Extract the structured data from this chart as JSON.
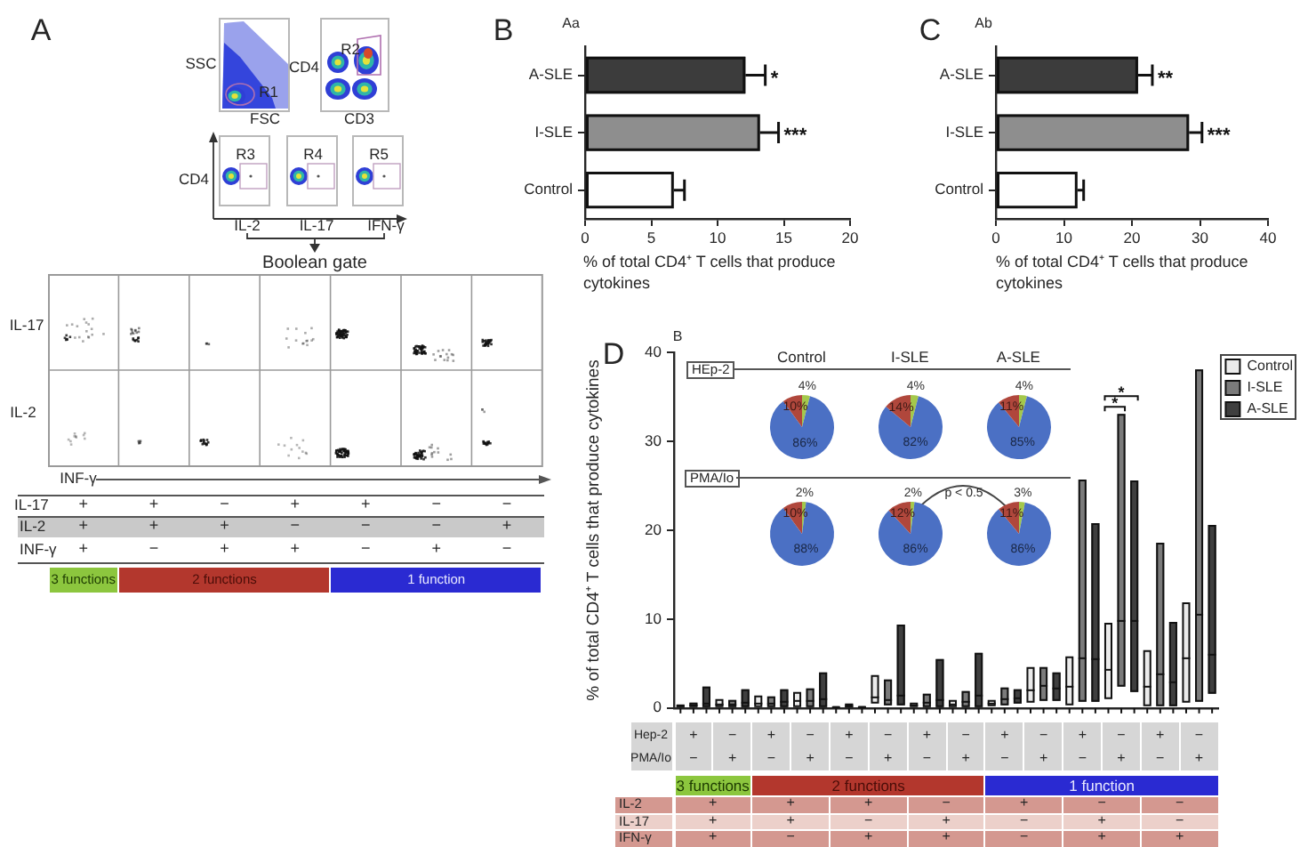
{
  "chart_data": [
    {
      "type": "other",
      "title": "A",
      "annotations": [
        "SSC",
        "R1",
        "FSC",
        "CD4",
        "R2",
        "CD3",
        "R3",
        "R4",
        "R5",
        "CD4",
        "IL-2",
        "IL-17",
        "IFN-γ",
        "Boolean gate",
        "IL-17",
        "IL-2",
        "INF-γ",
        "IL-17",
        "+",
        "+",
        "−",
        "+",
        "+",
        "−",
        "−",
        "IL-2",
        "+",
        "+",
        "+",
        "−",
        "−",
        "−",
        "+",
        "INF-γ",
        "+",
        "−",
        "+",
        "+",
        "−",
        "+",
        "−",
        "3 functions",
        "2 functions",
        "1 function"
      ]
    },
    {
      "type": "bar",
      "orientation": "horizontal",
      "title": "B",
      "subtitle": "Aa",
      "categories": [
        "A-SLE",
        "I-SLE",
        "Control"
      ],
      "values": [
        12.1,
        13.2,
        6.7
      ],
      "errors": [
        [
          12.1,
          13.6
        ],
        [
          13.2,
          14.6
        ],
        [
          6.7,
          7.5
        ]
      ],
      "colors": [
        "#3c3c3c",
        "#8e8e8e",
        "#ffffff"
      ],
      "xlim": [
        0,
        20
      ],
      "xticks": [
        0,
        5,
        10,
        15,
        20
      ],
      "xlabel": "% of total CD4⁺ T cells that produce cytokines",
      "annotations": [
        "*",
        "***"
      ]
    },
    {
      "type": "bar",
      "orientation": "horizontal",
      "title": "C",
      "subtitle": "Ab",
      "categories": [
        "A-SLE",
        "I-SLE",
        "Control"
      ],
      "values": [
        20.9,
        28.4,
        12.0
      ],
      "errors": [
        [
          20.9,
          23.0
        ],
        [
          28.4,
          30.3
        ],
        [
          12.0,
          12.9
        ]
      ],
      "colors": [
        "#3c3c3c",
        "#8e8e8e",
        "#ffffff"
      ],
      "xlim": [
        0,
        40
      ],
      "xticks": [
        0,
        10,
        20,
        30,
        40
      ],
      "xlabel": "% of total CD4⁺ T cells that produce cytokines",
      "annotations": [
        "**",
        "***"
      ]
    },
    {
      "type": "box",
      "title": "D",
      "subtitle": "B",
      "categories": [
        null,
        null,
        null,
        null,
        null,
        null,
        null,
        null,
        null,
        null,
        null,
        null,
        null,
        null
      ],
      "ylim": [
        0,
        40
      ],
      "yticks": [
        0,
        10,
        20,
        30,
        40
      ],
      "ylabel": "% of total CD4⁺ T cells that produce cytokines",
      "legend": "top right",
      "series": [
        {
          "name": "Control",
          "color": "#ebebeb",
          "boxes": [
            {
              "low": 0,
              "q1": 0,
              "median": 0.2,
              "q3": 0.4,
              "high": 0.4
            },
            {
              "low": 0.1,
              "q1": 0.1,
              "median": 0.4,
              "q3": 1.0,
              "high": 1.0
            },
            {
              "low": 0.1,
              "q1": 0.1,
              "median": 0.5,
              "q3": 1.4,
              "high": 1.4
            },
            {
              "low": 0.1,
              "q1": 0.1,
              "median": 0.8,
              "q3": 1.8,
              "high": 1.8
            },
            {
              "low": 0,
              "q1": 0,
              "median": 0.1,
              "q3": 0.2,
              "high": 0.2
            },
            {
              "low": 0.5,
              "q1": 0.5,
              "median": 1.2,
              "q3": 3.7,
              "high": 3.7
            },
            {
              "low": 0,
              "q1": 0,
              "median": 0.3,
              "q3": 0.6,
              "high": 0.6
            },
            {
              "low": 0,
              "q1": 0,
              "median": 0.4,
              "q3": 0.9,
              "high": 0.9
            },
            {
              "low": 0.2,
              "q1": 0.2,
              "median": 0.5,
              "q3": 0.9,
              "high": 0.9
            },
            {
              "low": 0.6,
              "q1": 0.6,
              "median": 2.0,
              "q3": 4.6,
              "high": 4.6
            },
            {
              "low": 0.3,
              "q1": 0.3,
              "median": 2.4,
              "q3": 5.8,
              "high": 5.8
            },
            {
              "low": 1.0,
              "q1": 1.0,
              "median": 4.3,
              "q3": 9.6,
              "high": 9.6
            },
            {
              "low": 0.2,
              "q1": 0.2,
              "median": 2.4,
              "q3": 6.5,
              "high": 6.5
            },
            {
              "low": 0.6,
              "q1": 0.6,
              "median": 5.6,
              "q3": 11.9,
              "high": 11.9
            }
          ]
        },
        {
          "name": "I-SLE",
          "color": "#7b7b7b",
          "boxes": [
            {
              "low": 0,
              "q1": 0,
              "median": 0.3,
              "q3": 0.6,
              "high": 0.6
            },
            {
              "low": 0.1,
              "q1": 0.1,
              "median": 0.4,
              "q3": 0.9,
              "high": 0.9
            },
            {
              "low": 0.1,
              "q1": 0.1,
              "median": 0.5,
              "q3": 1.3,
              "high": 1.3
            },
            {
              "low": 0.1,
              "q1": 0.1,
              "median": 0.8,
              "q3": 2.2,
              "high": 2.2
            },
            {
              "low": 0,
              "q1": 0,
              "median": 0.2,
              "q3": 0.5,
              "high": 0.5
            },
            {
              "low": 0.3,
              "q1": 0.3,
              "median": 0.9,
              "q3": 3.2,
              "high": 3.2
            },
            {
              "low": 0,
              "q1": 0,
              "median": 0.6,
              "q3": 1.6,
              "high": 1.6
            },
            {
              "low": 0.1,
              "q1": 0.1,
              "median": 0.7,
              "q3": 1.9,
              "high": 1.9
            },
            {
              "low": 0.3,
              "q1": 0.3,
              "median": 1.0,
              "q3": 2.3,
              "high": 2.3
            },
            {
              "low": 0.8,
              "q1": 0.8,
              "median": 2.5,
              "q3": 4.6,
              "high": 4.6
            },
            {
              "low": 0.7,
              "q1": 0.7,
              "median": 5.6,
              "q3": 25.7,
              "high": 25.7
            },
            {
              "low": 2.4,
              "q1": 2.4,
              "median": 9.8,
              "q3": 33.1,
              "high": 33.1
            },
            {
              "low": 0.2,
              "q1": 0.2,
              "median": 3.8,
              "q3": 18.6,
              "high": 18.6
            },
            {
              "low": 0.7,
              "q1": 0.7,
              "median": 10.5,
              "q3": 38.1,
              "high": 38.1
            }
          ]
        },
        {
          "name": "A-SLE",
          "color": "#3f3f3f",
          "boxes": [
            {
              "low": 0,
              "q1": 0,
              "median": 0.5,
              "q3": 2.4,
              "high": 2.4
            },
            {
              "low": 0.1,
              "q1": 0.1,
              "median": 0.6,
              "q3": 2.1,
              "high": 2.1
            },
            {
              "low": 0.1,
              "q1": 0.1,
              "median": 0.7,
              "q3": 2.1,
              "high": 2.1
            },
            {
              "low": 0.1,
              "q1": 0.1,
              "median": 1.0,
              "q3": 4.0,
              "high": 4.0
            },
            {
              "low": 0,
              "q1": 0,
              "median": 0.1,
              "q3": 0.2,
              "high": 0.2
            },
            {
              "low": 0.3,
              "q1": 0.3,
              "median": 1.4,
              "q3": 9.4,
              "high": 9.4
            },
            {
              "low": 0.1,
              "q1": 0.1,
              "median": 0.9,
              "q3": 5.5,
              "high": 5.5
            },
            {
              "low": 0.1,
              "q1": 0.1,
              "median": 1.4,
              "q3": 6.2,
              "high": 6.2
            },
            {
              "low": 0.5,
              "q1": 0.5,
              "median": 1.1,
              "q3": 2.1,
              "high": 2.1
            },
            {
              "low": 0.8,
              "q1": 0.8,
              "median": 2.2,
              "q3": 4.0,
              "high": 4.0
            },
            {
              "low": 0.7,
              "q1": 0.7,
              "median": 5.5,
              "q3": 20.8,
              "high": 20.8
            },
            {
              "low": 1.8,
              "q1": 1.8,
              "median": 9.8,
              "q3": 25.6,
              "high": 25.6
            },
            {
              "low": 0.2,
              "q1": 0.2,
              "median": 2.9,
              "q3": 9.7,
              "high": 9.7
            },
            {
              "low": 1.6,
              "q1": 1.6,
              "median": 6.0,
              "q3": 20.6,
              "high": 20.6
            }
          ]
        }
      ],
      "annotations": [
        "*",
        "*",
        "HEp-2",
        "PMA/Io",
        "p < 0.5",
        "Hep-2",
        "+",
        "−",
        "+",
        "−",
        "+",
        "−",
        "+",
        "−",
        "+",
        "−",
        "+",
        "−",
        "+",
        "−",
        "PMA/Io",
        "−",
        "+",
        "−",
        "+",
        "−",
        "+",
        "−",
        "+",
        "−",
        "+",
        "−",
        "+",
        "−",
        "+",
        "3 functions",
        "2 functions",
        "1 function",
        "IL-2",
        "+",
        "+",
        "+",
        "−",
        "+",
        "−",
        "−",
        "IL-17",
        "+",
        "+",
        "−",
        "+",
        "−",
        "+",
        "−",
        "IFN-γ",
        "+",
        "−",
        "+",
        "+",
        "−",
        "+",
        "+"
      ]
    },
    {
      "type": "pie",
      "title": "Control",
      "categories": [
        null,
        null,
        null
      ],
      "values": [
        4,
        86,
        10
      ],
      "colors": [
        "#a4c84c",
        "#4b70c4",
        "#b0473c"
      ],
      "value_labels": [
        "4%",
        "86%",
        "10%"
      ]
    },
    {
      "type": "pie",
      "title": "I-SLE",
      "categories": [
        null,
        null,
        null
      ],
      "values": [
        4,
        82,
        14
      ],
      "colors": [
        "#a4c84c",
        "#4b70c4",
        "#b0473c"
      ],
      "value_labels": [
        "4%",
        "82%",
        "14%"
      ]
    },
    {
      "type": "pie",
      "title": "A-SLE",
      "categories": [
        null,
        null,
        null
      ],
      "values": [
        4,
        85,
        11
      ],
      "colors": [
        "#a4c84c",
        "#4b70c4",
        "#b0473c"
      ],
      "value_labels": [
        "4%",
        "85%",
        "11%"
      ]
    },
    {
      "type": "pie",
      "categories": [
        null,
        null,
        null
      ],
      "values": [
        2,
        88,
        10
      ],
      "colors": [
        "#a4c84c",
        "#4b70c4",
        "#b0473c"
      ],
      "value_labels": [
        "2%",
        "88%",
        "10%"
      ]
    },
    {
      "type": "pie",
      "categories": [
        null,
        null,
        null
      ],
      "values": [
        2,
        86,
        12
      ],
      "colors": [
        "#a4c84c",
        "#4b70c4",
        "#b0473c"
      ],
      "value_labels": [
        "2%",
        "86%",
        "12%"
      ]
    },
    {
      "type": "pie",
      "categories": [
        null,
        null,
        null
      ],
      "values": [
        3,
        86,
        11
      ],
      "colors": [
        "#a4c84c",
        "#4b70c4",
        "#b0473c"
      ],
      "value_labels": [
        "3%",
        "86%",
        "11%"
      ]
    }
  ]
}
